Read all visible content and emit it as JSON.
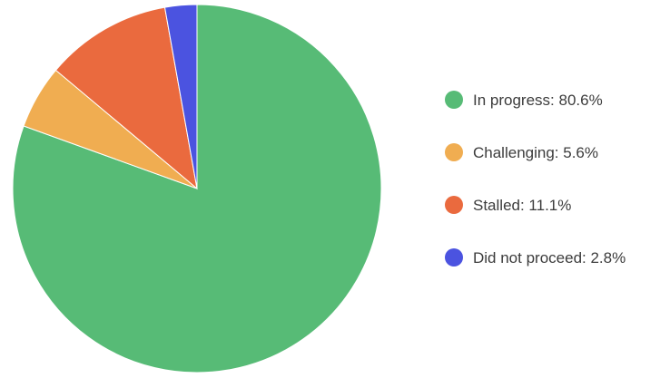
{
  "chart_data": {
    "type": "pie",
    "title": "",
    "legend_position": "right",
    "start_angle": "12 o'clock, clockwise",
    "slices": [
      {
        "label": "In progress: 80.6%",
        "category": "In progress",
        "value": 80.6,
        "color": "#57bb76"
      },
      {
        "label": "Challenging: 5.6%",
        "category": "Challenging",
        "value": 5.6,
        "color": "#f0ad51"
      },
      {
        "label": "Stalled: 11.1%",
        "category": "Stalled",
        "value": 11.1,
        "color": "#ea6a3e"
      },
      {
        "label": "Did not proceed: 2.8%",
        "category": "Did not proceed",
        "value": 2.8,
        "color": "#4b53e0"
      }
    ]
  }
}
